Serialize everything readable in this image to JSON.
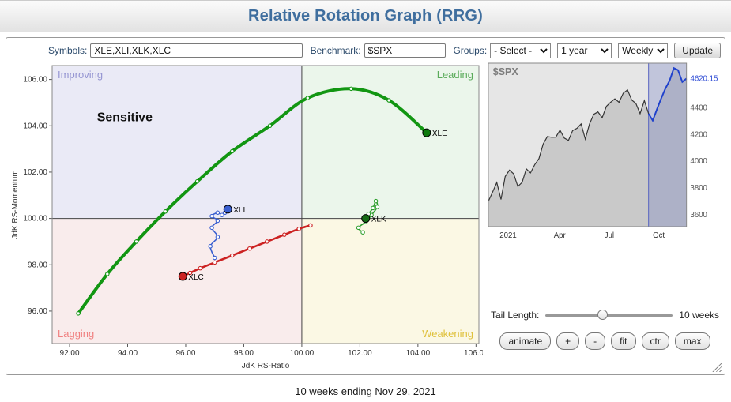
{
  "header": {
    "title": "Relative Rotation Graph (RRG)"
  },
  "toolbar": {
    "symbols_label": "Symbols:",
    "symbols_value": "XLE,XLI,XLK,XLC",
    "benchmark_label": "Benchmark:",
    "benchmark_value": "$SPX",
    "groups_label": "Groups:",
    "groups_option": "- Select -",
    "period_option": "1 year",
    "interval_option": "Weekly",
    "update_label": "Update"
  },
  "controls": {
    "tail_length_label": "Tail Length:",
    "tail_length_value": "10 weeks",
    "tail_slider_percent": 45,
    "buttons": [
      {
        "label": "animate"
      },
      {
        "label": "+"
      },
      {
        "label": "-"
      },
      {
        "label": "fit"
      },
      {
        "label": "ctr"
      },
      {
        "label": "max"
      }
    ]
  },
  "footer": {
    "caption": "10 weeks ending Nov 29, 2021"
  },
  "chart_data": [
    {
      "type": "scatter",
      "name": "rrg",
      "xlabel": "JdK RS-Ratio",
      "ylabel": "JdK RS-Momentum",
      "xlim": [
        91.4,
        106.1
      ],
      "ylim": [
        94.6,
        106.6
      ],
      "xticks": [
        92,
        94,
        96,
        98,
        100,
        102,
        104,
        106
      ],
      "yticks": [
        96,
        98,
        100,
        102,
        104,
        106
      ],
      "center": [
        100,
        100
      ],
      "quadrants": [
        {
          "name": "Improving",
          "corner": "top-left",
          "bg": "#eaeaf6",
          "label_color": "#9595d2"
        },
        {
          "name": "Leading",
          "corner": "top-right",
          "bg": "#ebf6eb",
          "label_color": "#5aab5a"
        },
        {
          "name": "Lagging",
          "corner": "bottom-left",
          "bg": "#f9ecec",
          "label_color": "#f08080"
        },
        {
          "name": "Weakening",
          "corner": "bottom-right",
          "bg": "#fbf8e4",
          "label_color": "#dfc13c"
        }
      ],
      "annotation": {
        "text": "Sensitive",
        "x": 93.9,
        "y": 104.2,
        "color": "#111111"
      },
      "series": [
        {
          "name": "XLE",
          "color": "#129612",
          "dot_color": "#0d7a0d",
          "width": 4,
          "points": [
            [
              92.3,
              95.9
            ],
            [
              93.3,
              97.6
            ],
            [
              94.3,
              99.0
            ],
            [
              95.3,
              100.3
            ],
            [
              96.4,
              101.6
            ],
            [
              97.6,
              102.9
            ],
            [
              98.9,
              104.0
            ],
            [
              100.2,
              105.2
            ],
            [
              101.7,
              105.6
            ],
            [
              103.0,
              105.1
            ],
            [
              104.3,
              103.7
            ]
          ]
        },
        {
          "name": "XLI",
          "color": "#3a5fd0",
          "dot_color": "#3a5fd0",
          "width": 1.6,
          "points": [
            [
              97.0,
              98.3
            ],
            [
              96.85,
              98.8
            ],
            [
              97.1,
              99.2
            ],
            [
              96.9,
              99.6
            ],
            [
              97.1,
              99.9
            ],
            [
              96.9,
              100.1
            ],
            [
              97.1,
              100.25
            ],
            [
              97.25,
              100.15
            ],
            [
              97.35,
              100.25
            ],
            [
              97.45,
              100.4
            ]
          ]
        },
        {
          "name": "XLK",
          "color": "#2e9e2e",
          "dot_color": "#156b15",
          "width": 1.6,
          "points": [
            [
              102.1,
              99.4
            ],
            [
              101.95,
              99.6
            ],
            [
              102.2,
              99.85
            ],
            [
              102.4,
              100.15
            ],
            [
              102.6,
              100.5
            ],
            [
              102.55,
              100.75
            ],
            [
              102.45,
              100.45
            ],
            [
              102.3,
              100.2
            ],
            [
              102.2,
              100.0
            ]
          ]
        },
        {
          "name": "XLC",
          "color": "#cc2222",
          "dot_color": "#cc2222",
          "width": 2.6,
          "points": [
            [
              100.3,
              99.7
            ],
            [
              99.9,
              99.55
            ],
            [
              99.4,
              99.3
            ],
            [
              98.8,
              99.0
            ],
            [
              98.2,
              98.7
            ],
            [
              97.6,
              98.4
            ],
            [
              97.0,
              98.1
            ],
            [
              96.5,
              97.85
            ],
            [
              96.15,
              97.65
            ],
            [
              95.9,
              97.5
            ]
          ]
        }
      ]
    },
    {
      "type": "line",
      "name": "benchmark",
      "title": "$SPX",
      "last_price_label": "4620.15",
      "ylim": [
        3510,
        4735
      ],
      "yticks": [
        3600,
        3800,
        4000,
        4200,
        4400
      ],
      "xticklabels": [
        {
          "label": "2021",
          "pos": 0.1
        },
        {
          "label": "Apr",
          "pos": 0.36
        },
        {
          "label": "Jul",
          "pos": 0.61
        },
        {
          "label": "Oct",
          "pos": 0.86
        }
      ],
      "highlight_last": 10,
      "line_color": "#333333",
      "highlight_color": "#1f41cc",
      "band_color": "rgba(108,122,196,0.30)",
      "values": [
        3700,
        3768,
        3841,
        3714,
        3886,
        3934,
        3906,
        3811,
        3842,
        3943,
        3913,
        3975,
        4020,
        4129,
        4185,
        4180,
        4181,
        4233,
        4174,
        4156,
        4230,
        4247,
        4280,
        4166,
        4281,
        4352,
        4370,
        4327,
        4412,
        4442,
        4468,
        4442,
        4510,
        4535,
        4459,
        4433,
        4357,
        4455,
        4357,
        4305,
        4391,
        4471,
        4545,
        4605,
        4698,
        4683,
        4595,
        4620.15
      ]
    }
  ]
}
